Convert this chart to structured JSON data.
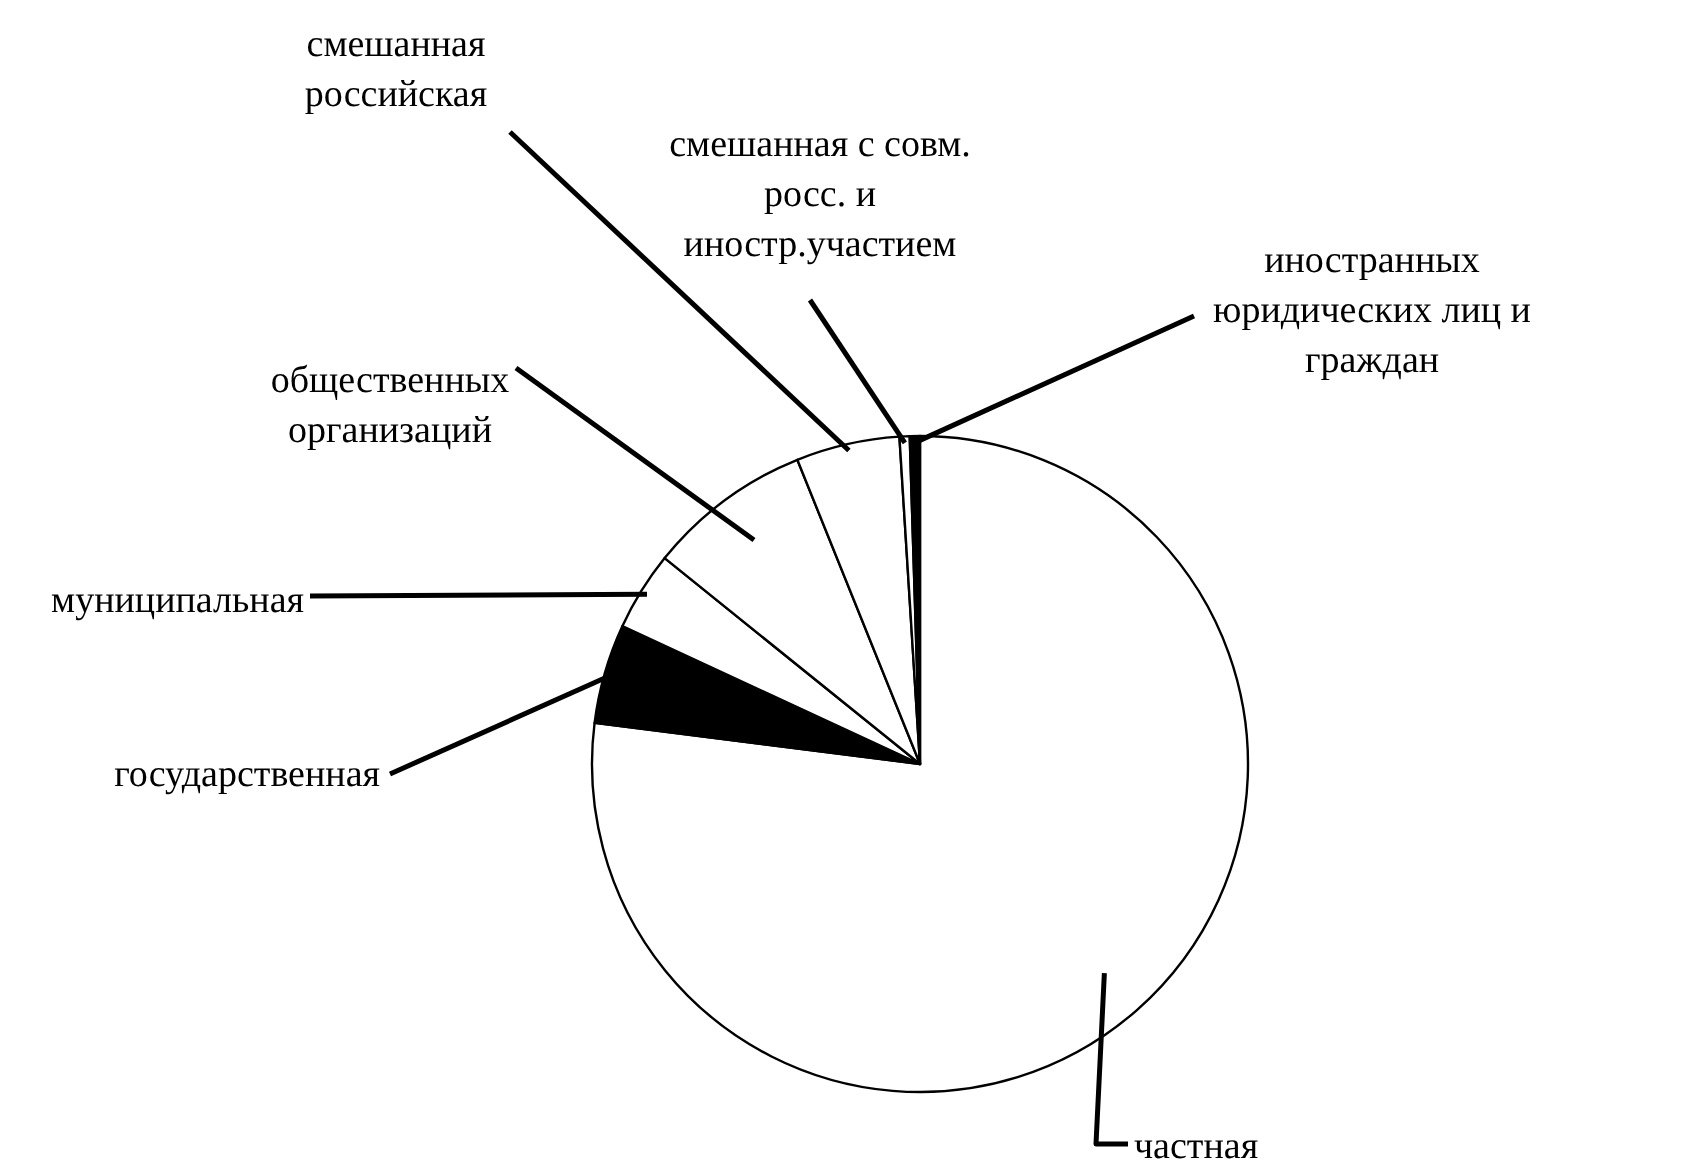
{
  "chart_data": {
    "type": "pie",
    "categories": [
      "частная",
      "государственная",
      "муниципальная",
      "общественных организаций",
      "смешанная российская",
      "смешанная с совм. росс. и иностр.участием",
      "иностранных юридических лиц и граждан"
    ],
    "values": [
      77,
      4.9,
      3.9,
      8.1,
      5.1,
      0.5,
      0.5
    ],
    "colors": [
      "#ffffff",
      "#000000",
      "#ffffff",
      "#ffffff",
      "#ffffff",
      "#ffffff",
      "#000000"
    ],
    "legend": false
  }
}
